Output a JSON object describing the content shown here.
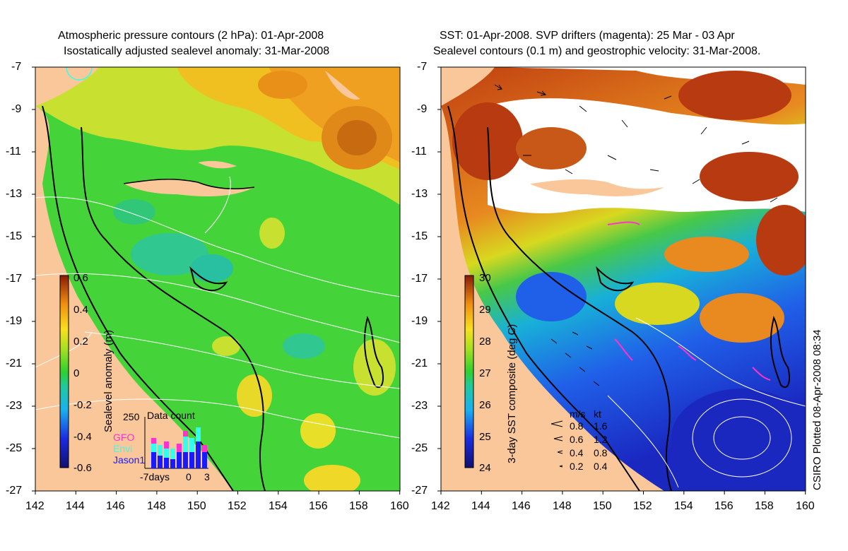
{
  "left_panel": {
    "title_line1": "Atmospheric pressure contours (2 hPa): 01-Apr-2008",
    "title_line2": "Isostatically adjusted sealevel anomaly: 31-Mar-2008",
    "colorbar_label": "Sealevel anomaly (m)",
    "colorbar_ticks": [
      "0.6",
      "0.4",
      "0.2",
      "0",
      "-0.2",
      "-0.4",
      "-0.6"
    ],
    "inset": {
      "title": "Data count",
      "y_max_label": "250",
      "satellites": [
        {
          "name": "GFO",
          "color": "#ff33cc"
        },
        {
          "name": "Envi",
          "color": "#33ffee"
        },
        {
          "name": "Jason1",
          "color": "#1a1aff"
        }
      ],
      "x_labels": [
        "-7days",
        "0",
        "3"
      ]
    }
  },
  "right_panel": {
    "title_line1": "SST: 01-Apr-2008. SVP drifters (magenta): 25 Mar - 03 Apr",
    "title_line2": "Sealevel contours (0.1 m) and geostrophic velocity: 31-Mar-2008.",
    "colorbar_label": "3-day SST composite (deg C)",
    "colorbar_ticks": [
      "30",
      "29",
      "28",
      "27",
      "26",
      "25",
      "24"
    ],
    "velocity_legend": {
      "header": [
        "m/s",
        "kt"
      ],
      "rows": [
        [
          "0.8",
          "1.6"
        ],
        [
          "0.6",
          "1.2"
        ],
        [
          "0.4",
          "0.8"
        ],
        [
          "0.2",
          "0.4"
        ]
      ]
    }
  },
  "axes": {
    "y_ticks": [
      "-7",
      "-9",
      "-11",
      "-13",
      "-15",
      "-17",
      "-19",
      "-21",
      "-23",
      "-25",
      "-27"
    ],
    "x_ticks": [
      "142",
      "144",
      "146",
      "148",
      "150",
      "152",
      "154",
      "156",
      "158",
      "160"
    ]
  },
  "credit": "CSIRO Plotted 08-Apr-2008 08:34",
  "colors": {
    "land": "#f9c79a",
    "sla_green": "#44d43a",
    "sst_warm": "#b83a10",
    "sst_cool": "#2050e0"
  }
}
